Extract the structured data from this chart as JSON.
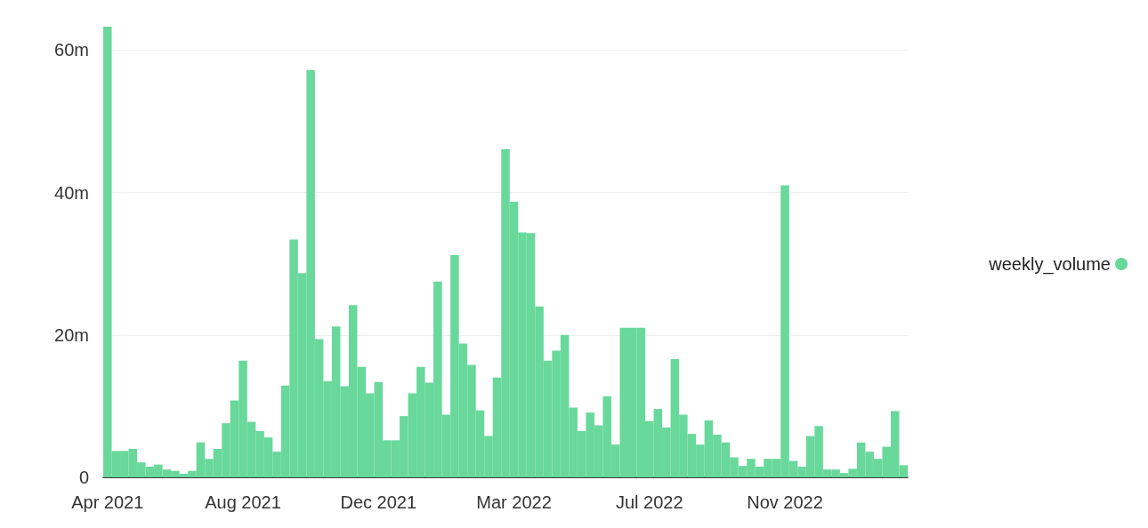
{
  "chart_data": {
    "type": "bar",
    "categories": [
      "Apr 2021",
      null,
      null,
      null,
      null,
      null,
      null,
      null,
      null,
      null,
      null,
      null,
      null,
      null,
      null,
      null,
      "Aug 2021",
      null,
      null,
      null,
      null,
      null,
      null,
      null,
      null,
      null,
      null,
      null,
      null,
      null,
      null,
      null,
      "Dec 2021",
      null,
      null,
      null,
      null,
      null,
      null,
      null,
      null,
      null,
      null,
      null,
      null,
      null,
      null,
      null,
      "Mar 2022",
      null,
      null,
      null,
      null,
      null,
      null,
      null,
      null,
      null,
      null,
      null,
      null,
      null,
      null,
      null,
      "Jul 2022",
      null,
      null,
      null,
      null,
      null,
      null,
      null,
      null,
      null,
      null,
      null,
      null,
      null,
      null,
      null,
      "Nov 2022",
      null,
      null,
      null,
      null,
      null,
      null,
      null,
      null,
      null,
      null,
      null,
      null,
      null,
      null
    ],
    "series": [
      {
        "name": "weekly_volume",
        "color": "#68d89b",
        "values": [
          63.3,
          3.7,
          3.7,
          4.0,
          2.1,
          1.5,
          1.8,
          1.1,
          0.9,
          0.5,
          0.9,
          4.9,
          2.6,
          4.0,
          7.6,
          10.8,
          16.4,
          7.8,
          6.5,
          5.6,
          3.6,
          12.9,
          33.4,
          28.7,
          57.2,
          19.4,
          13.5,
          21.2,
          12.8,
          24.2,
          15.5,
          11.8,
          13.4,
          5.2,
          5.2,
          8.6,
          11.8,
          15.5,
          13.3,
          27.5,
          8.8,
          31.2,
          18.8,
          15.8,
          9.4,
          5.8,
          14.0,
          46.1,
          38.7,
          34.4,
          34.3,
          24.0,
          16.4,
          17.8,
          20.0,
          9.8,
          6.5,
          9.1,
          7.3,
          11.4,
          4.6,
          21.0,
          21.0,
          21.0,
          7.9,
          9.6,
          7.0,
          16.6,
          8.8,
          6.1,
          4.6,
          8.0,
          6.0,
          4.9,
          2.8,
          1.6,
          2.6,
          1.5,
          2.6,
          2.6,
          41.0,
          2.3,
          1.5,
          5.8,
          7.2,
          1.1,
          1.1,
          0.6,
          1.2,
          4.9,
          3.6,
          2.6,
          4.3,
          9.3,
          1.7
        ]
      }
    ],
    "ylim": [
      0,
      63.3
    ],
    "yticks": [
      0,
      {
        "value": 20,
        "label": "20m"
      },
      {
        "value": 40,
        "label": "40m"
      },
      {
        "value": 60,
        "label": "60m"
      }
    ],
    "grid": "y",
    "legend": "right"
  }
}
